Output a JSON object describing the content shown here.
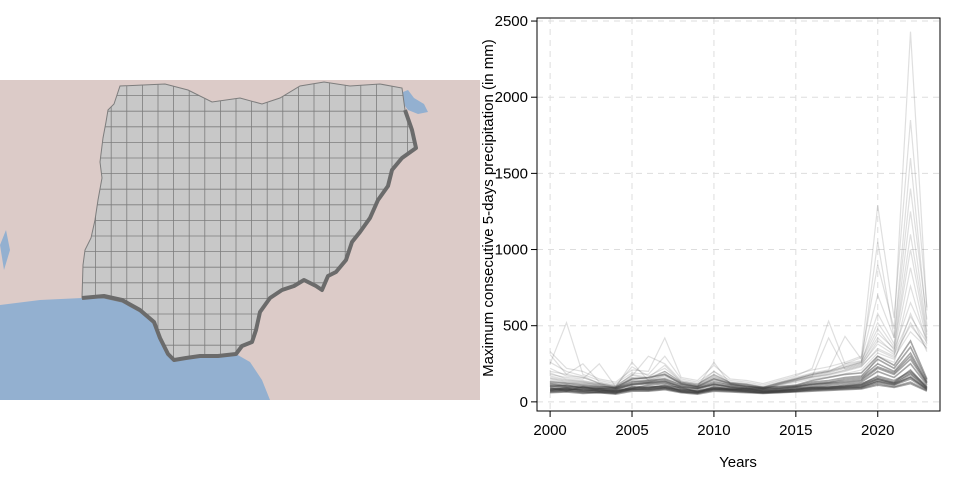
{
  "colors": {
    "land": "#dccbc8",
    "water": "#93b0d0",
    "country_fill": "#c8c8c8",
    "grid_line": "#7d7d7d",
    "border": "#6b6b6b",
    "series_line": "#3a3a3a",
    "plot_grid": "#dddddd"
  },
  "map": {
    "type": "gridded-country-map"
  },
  "chart_data": {
    "type": "line",
    "title": "",
    "xlabel": "Years",
    "ylabel": "Maximum consecutive 5-days precipitation (in mm)",
    "xlim": [
      1999.2,
      2023.8
    ],
    "ylim": [
      -60,
      2520
    ],
    "xticks": [
      2000,
      2005,
      2010,
      2015,
      2020
    ],
    "yticks": [
      0,
      500,
      1000,
      1500,
      2000,
      2500
    ],
    "grid": true,
    "legend": "none",
    "x": [
      2000,
      2001,
      2002,
      2003,
      2004,
      2005,
      2006,
      2007,
      2008,
      2009,
      2010,
      2011,
      2012,
      2013,
      2014,
      2015,
      2016,
      2017,
      2018,
      2019,
      2020,
      2021,
      2022,
      2023
    ],
    "series": [
      {
        "values": [
          80,
          90,
          70,
          80,
          60,
          100,
          90,
          110,
          70,
          60,
          100,
          80,
          70,
          60,
          70,
          80,
          90,
          90,
          100,
          110,
          150,
          120,
          180,
          90
        ]
      },
      {
        "values": [
          95,
          80,
          85,
          70,
          75,
          90,
          110,
          120,
          85,
          70,
          90,
          85,
          80,
          75,
          80,
          85,
          100,
          110,
          120,
          130,
          200,
          160,
          250,
          110
        ]
      },
      {
        "values": [
          70,
          75,
          60,
          65,
          55,
          85,
          80,
          90,
          65,
          55,
          80,
          75,
          65,
          60,
          65,
          70,
          80,
          85,
          90,
          95,
          130,
          110,
          150,
          80
        ]
      },
      {
        "values": [
          110,
          100,
          95,
          90,
          85,
          120,
          130,
          140,
          100,
          90,
          120,
          100,
          90,
          85,
          90,
          100,
          120,
          130,
          150,
          160,
          250,
          200,
          320,
          130
        ]
      },
      {
        "values": [
          60,
          65,
          55,
          60,
          50,
          70,
          70,
          80,
          60,
          50,
          70,
          65,
          60,
          55,
          60,
          65,
          70,
          75,
          80,
          85,
          110,
          95,
          120,
          70
        ]
      },
      {
        "values": [
          130,
          120,
          110,
          100,
          95,
          150,
          160,
          180,
          120,
          100,
          150,
          120,
          100,
          95,
          100,
          110,
          140,
          160,
          180,
          190,
          300,
          240,
          400,
          150
        ]
      },
      {
        "values": [
          85,
          95,
          80,
          85,
          70,
          95,
          100,
          100,
          80,
          75,
          95,
          90,
          80,
          70,
          75,
          90,
          95,
          100,
          105,
          115,
          170,
          140,
          200,
          100
        ]
      },
      {
        "values": [
          75,
          85,
          75,
          70,
          65,
          80,
          85,
          95,
          75,
          65,
          85,
          80,
          75,
          65,
          70,
          75,
          85,
          90,
          95,
          100,
          140,
          120,
          160,
          85
        ]
      },
      {
        "values": [
          100,
          110,
          90,
          85,
          80,
          110,
          120,
          130,
          90,
          85,
          110,
          95,
          85,
          80,
          85,
          95,
          110,
          120,
          130,
          140,
          220,
          180,
          280,
          120
        ]
      },
      {
        "values": [
          90,
          70,
          100,
          75,
          70,
          85,
          95,
          105,
          95,
          65,
          85,
          80,
          90,
          70,
          75,
          80,
          95,
          95,
          110,
          120,
          160,
          130,
          210,
          95
        ]
      },
      {
        "values": [
          65,
          70,
          65,
          60,
          58,
          75,
          75,
          85,
          65,
          58,
          75,
          70,
          65,
          58,
          62,
          68,
          75,
          80,
          85,
          90,
          120,
          100,
          130,
          75
        ]
      },
      {
        "values": [
          120,
          105,
          100,
          95,
          90,
          130,
          140,
          150,
          110,
          95,
          130,
          110,
          95,
          90,
          95,
          105,
          130,
          140,
          160,
          170,
          280,
          220,
          360,
          140
        ]
      },
      {
        "values": [
          80,
          85,
          78,
          76,
          72,
          88,
          92,
          96,
          78,
          70,
          90,
          84,
          76,
          70,
          74,
          82,
          90,
          96,
          100,
          108,
          150,
          126,
          190,
          92
        ]
      },
      {
        "values": [
          105,
          95,
          92,
          88,
          82,
          115,
          125,
          135,
          98,
          88,
          115,
          98,
          88,
          82,
          88,
          98,
          115,
          125,
          140,
          150,
          230,
          190,
          300,
          125
        ]
      },
      {
        "values": [
          72,
          78,
          68,
          66,
          62,
          82,
          82,
          92,
          70,
          62,
          82,
          76,
          70,
          62,
          66,
          72,
          82,
          86,
          92,
          98,
          135,
          112,
          165,
          82
        ]
      },
      {
        "values": [
          330,
          220,
          200,
          150,
          130,
          210,
          200,
          420,
          160,
          140,
          240,
          150,
          140,
          120,
          150,
          180,
          210,
          230,
          260,
          300,
          1290,
          550,
          1850,
          620
        ]
      },
      {
        "values": [
          250,
          520,
          180,
          140,
          120,
          190,
          180,
          300,
          150,
          130,
          200,
          140,
          130,
          110,
          140,
          170,
          220,
          530,
          250,
          290,
          900,
          480,
          2430,
          600
        ]
      },
      {
        "values": [
          200,
          180,
          250,
          130,
          110,
          170,
          300,
          250,
          140,
          120,
          180,
          130,
          120,
          100,
          130,
          160,
          190,
          210,
          430,
          280,
          700,
          420,
          1600,
          500
        ]
      },
      {
        "values": [
          180,
          160,
          150,
          250,
          100,
          160,
          150,
          200,
          130,
          110,
          160,
          125,
          115,
          95,
          125,
          150,
          180,
          200,
          230,
          260,
          580,
          380,
          1250,
          460
        ]
      },
      {
        "values": [
          160,
          140,
          135,
          120,
          95,
          260,
          140,
          180,
          125,
          105,
          150,
          120,
          110,
          90,
          120,
          145,
          170,
          190,
          220,
          250,
          450,
          350,
          1000,
          420
        ]
      },
      {
        "values": [
          150,
          130,
          125,
          115,
          90,
          140,
          130,
          170,
          120,
          100,
          260,
          115,
          105,
          85,
          115,
          140,
          165,
          180,
          210,
          240,
          400,
          330,
          880,
          400
        ]
      },
      {
        "values": [
          140,
          125,
          120,
          110,
          88,
          135,
          125,
          160,
          115,
          98,
          140,
          112,
          102,
          82,
          112,
          135,
          160,
          175,
          200,
          230,
          350,
          300,
          760,
          380
        ]
      },
      {
        "values": [
          260,
          200,
          170,
          120,
          100,
          150,
          160,
          240,
          130,
          115,
          170,
          125,
          115,
          95,
          125,
          150,
          180,
          200,
          250,
          270,
          520,
          360,
          1100,
          440
        ]
      },
      {
        "values": [
          220,
          170,
          160,
          125,
          105,
          230,
          170,
          220,
          135,
          118,
          175,
          128,
          118,
          98,
          128,
          155,
          185,
          205,
          240,
          265,
          480,
          340,
          650,
          410
        ]
      },
      {
        "values": [
          190,
          150,
          140,
          118,
          98,
          175,
          150,
          200,
          128,
          110,
          200,
          122,
          112,
          92,
          122,
          148,
          175,
          195,
          225,
          255,
          420,
          320,
          560,
          390
        ]
      },
      {
        "values": [
          170,
          145,
          132,
          112,
          92,
          160,
          145,
          190,
          122,
          105,
          165,
          118,
          108,
          88,
          118,
          142,
          168,
          420,
          215,
          245,
          380,
          310,
          500,
          370
        ]
      },
      {
        "values": [
          155,
          135,
          128,
          108,
          90,
          150,
          138,
          175,
          118,
          102,
          155,
          114,
          104,
          86,
          114,
          138,
          162,
          182,
          205,
          235,
          340,
          290,
          460,
          355
        ]
      },
      {
        "values": [
          310,
          180,
          160,
          120,
          100,
          180,
          160,
          200,
          130,
          110,
          180,
          125,
          110,
          95,
          120,
          150,
          180,
          200,
          230,
          260,
          1050,
          420,
          1400,
          540
        ]
      },
      {
        "values": [
          120,
          110,
          105,
          100,
          95,
          115,
          120,
          125,
          105,
          95,
          115,
          105,
          100,
          95,
          100,
          105,
          115,
          120,
          130,
          140,
          300,
          260,
          580,
          330
        ]
      },
      {
        "values": [
          135,
          125,
          118,
          105,
          92,
          140,
          135,
          150,
          112,
          100,
          140,
          110,
          102,
          88,
          108,
          128,
          150,
          165,
          185,
          210,
          320,
          280,
          520,
          345
        ]
      }
    ]
  }
}
